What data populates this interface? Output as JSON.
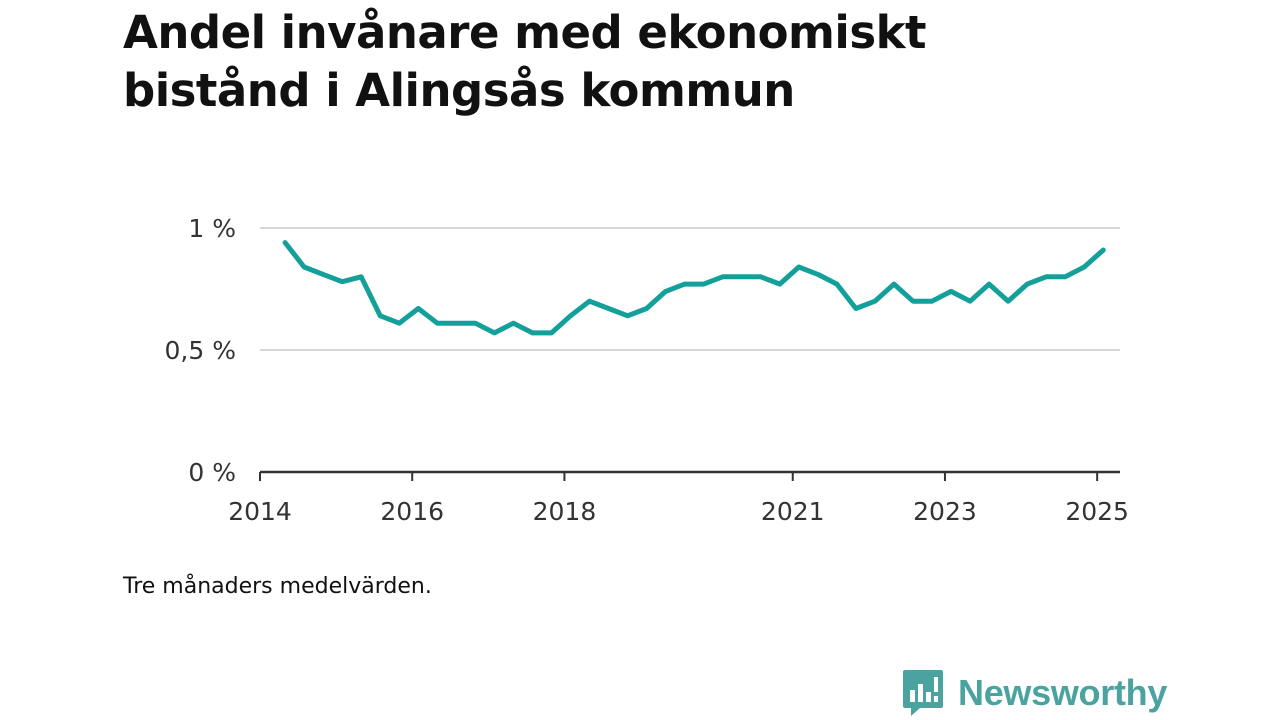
{
  "chart_data": {
    "type": "line",
    "title": "Andel invånare med ekonomiskt bistånd i Alingsås kommun",
    "note": "Tre månaders medelvärden.",
    "xlabel": "",
    "ylabel": "",
    "xlim": [
      2014.0,
      2025.3
    ],
    "ylim": [
      0,
      1
    ],
    "x_ticks": [
      2014,
      2016,
      2018,
      2021,
      2023,
      2025
    ],
    "y_ticks": [
      {
        "value": 0,
        "label": "0 %"
      },
      {
        "value": 0.5,
        "label": "0,5 %"
      },
      {
        "value": 1,
        "label": "1 %"
      }
    ],
    "grid": "horizontal",
    "legend": "none",
    "series": [
      {
        "color": "#14a09a",
        "x": [
          2014.33,
          2014.58,
          2014.83,
          2015.08,
          2015.33,
          2015.58,
          2015.83,
          2016.08,
          2016.33,
          2016.58,
          2016.83,
          2017.08,
          2017.33,
          2017.58,
          2017.83,
          2018.08,
          2018.33,
          2018.58,
          2018.83,
          2019.08,
          2019.33,
          2019.58,
          2019.83,
          2020.08,
          2020.33,
          2020.58,
          2020.83,
          2021.08,
          2021.33,
          2021.58,
          2021.83,
          2022.08,
          2022.33,
          2022.58,
          2022.83,
          2023.08,
          2023.33,
          2023.58,
          2023.83,
          2024.08,
          2024.33,
          2024.58,
          2024.83,
          2025.08
        ],
        "y": [
          0.94,
          0.84,
          0.81,
          0.78,
          0.8,
          0.64,
          0.61,
          0.67,
          0.61,
          0.61,
          0.61,
          0.57,
          0.61,
          0.57,
          0.57,
          0.64,
          0.7,
          0.67,
          0.64,
          0.67,
          0.74,
          0.77,
          0.77,
          0.8,
          0.8,
          0.8,
          0.77,
          0.84,
          0.81,
          0.77,
          0.67,
          0.7,
          0.77,
          0.7,
          0.7,
          0.74,
          0.7,
          0.77,
          0.7,
          0.77,
          0.8,
          0.8,
          0.84,
          0.91
        ]
      }
    ]
  },
  "brand": {
    "name": "Newsworthy",
    "icon": "bar-chart-bubble-icon",
    "color": "#4ba3a0"
  }
}
